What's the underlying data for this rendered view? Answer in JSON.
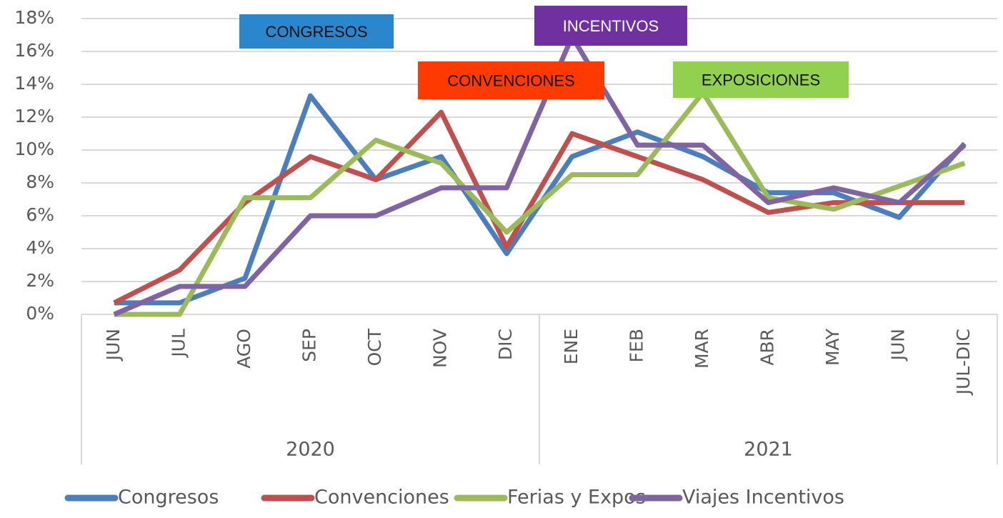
{
  "chart_data": {
    "type": "line",
    "groups": [
      {
        "name": "2020",
        "categories": [
          "JUN",
          "JUL",
          "AGO",
          "SEP",
          "OCT",
          "NOV",
          "DIC"
        ]
      },
      {
        "name": "2021",
        "categories": [
          "ENE",
          "FEB",
          "MAR",
          "ABR",
          "MAY",
          "JUN",
          "JUL-DIC"
        ]
      }
    ],
    "series": [
      {
        "name": "Congresos",
        "color": "#4a7ebf",
        "values": [
          0.7,
          0.7,
          2.2,
          13.3,
          8.2,
          9.6,
          3.7,
          9.6,
          11.1,
          9.6,
          7.4,
          7.4,
          5.9,
          10.4
        ]
      },
      {
        "name": "Convenciones",
        "color": "#c0504d",
        "values": [
          0.7,
          2.7,
          6.8,
          9.6,
          8.2,
          12.3,
          4.1,
          11.0,
          9.6,
          8.2,
          6.2,
          6.8,
          6.8,
          6.8
        ]
      },
      {
        "name": "Ferias y Expos",
        "color": "#9bbb59",
        "values": [
          0,
          0,
          7.1,
          7.1,
          10.6,
          9.2,
          5.0,
          8.5,
          8.5,
          13.5,
          7.1,
          6.4,
          7.8,
          9.2
        ]
      },
      {
        "name": "Viajes Incentivos",
        "color": "#8064a2",
        "values": [
          0,
          1.7,
          1.7,
          6.0,
          6.0,
          7.7,
          7.7,
          16.9,
          10.3,
          10.3,
          6.8,
          7.7,
          6.8,
          10.3
        ]
      }
    ],
    "ylim": [
      0,
      18
    ],
    "yticks": [
      {
        "value": 0,
        "label": "0%"
      },
      {
        "value": 2,
        "label": "2%"
      },
      {
        "value": 4,
        "label": "4%"
      },
      {
        "value": 6,
        "label": "6%"
      },
      {
        "value": 8,
        "label": "8%"
      },
      {
        "value": 10,
        "label": "10%"
      },
      {
        "value": 12,
        "label": "12%"
      },
      {
        "value": 14,
        "label": "14%"
      },
      {
        "value": 16,
        "label": "16%"
      },
      {
        "value": 18,
        "label": "18%"
      }
    ],
    "grid": true,
    "legend": "bottom",
    "annotations": [
      {
        "text": "CONGRESOS",
        "color": "#2a86cd"
      },
      {
        "text": "INCENTIVOS",
        "color": "#7030a0"
      },
      {
        "text": "CONVENCIONES",
        "color": "#ff3a00"
      },
      {
        "text": "EXPOSICIONES",
        "color": "#92d050"
      }
    ]
  }
}
